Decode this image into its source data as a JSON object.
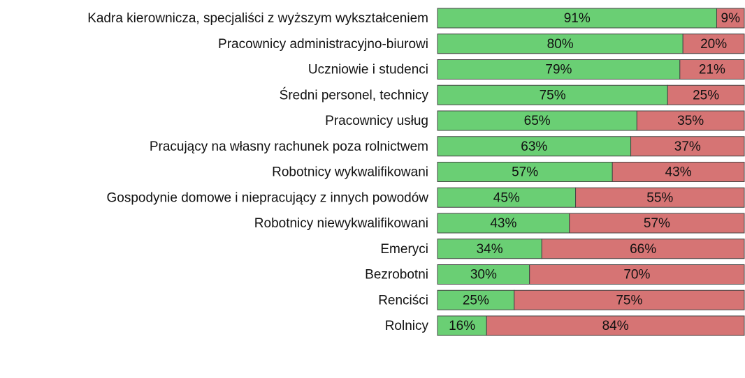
{
  "chart_data": {
    "type": "stacked_barh",
    "categories": [
      "Kadra kierownicza, specjaliści z wyższym wykształceniem",
      "Pracownicy administracyjno-biurowi",
      "Uczniowie i studenci",
      "Średni personel, technicy",
      "Pracownicy usług",
      "Pracujący na własny rachunek poza rolnictwem",
      "Robotnicy wykwalifikowani",
      "Gospodynie domowe i niepracujący z innych powodów",
      "Robotnicy niewykwalifikowani",
      "Emeryci",
      "Bezrobotni",
      "Renciści",
      "Rolnicy"
    ],
    "series": [
      {
        "color": "#6acf74",
        "values": [
          91,
          80,
          79,
          75,
          65,
          63,
          57,
          45,
          43,
          34,
          30,
          25,
          16
        ],
        "value_labels": [
          "91%",
          "80%",
          "79%",
          "75%",
          "65%",
          "63%",
          "57%",
          "45%",
          "43%",
          "34%",
          "30%",
          "25%",
          "16%"
        ]
      },
      {
        "color": "#d67474",
        "values": [
          9,
          20,
          21,
          25,
          35,
          37,
          43,
          55,
          57,
          66,
          70,
          75,
          84
        ],
        "value_labels": [
          "9%",
          "20%",
          "21%",
          "25%",
          "35%",
          "37%",
          "43%",
          "55%",
          "57%",
          "66%",
          "70%",
          "75%",
          "84%"
        ]
      }
    ],
    "xlim": [
      0,
      100
    ]
  }
}
